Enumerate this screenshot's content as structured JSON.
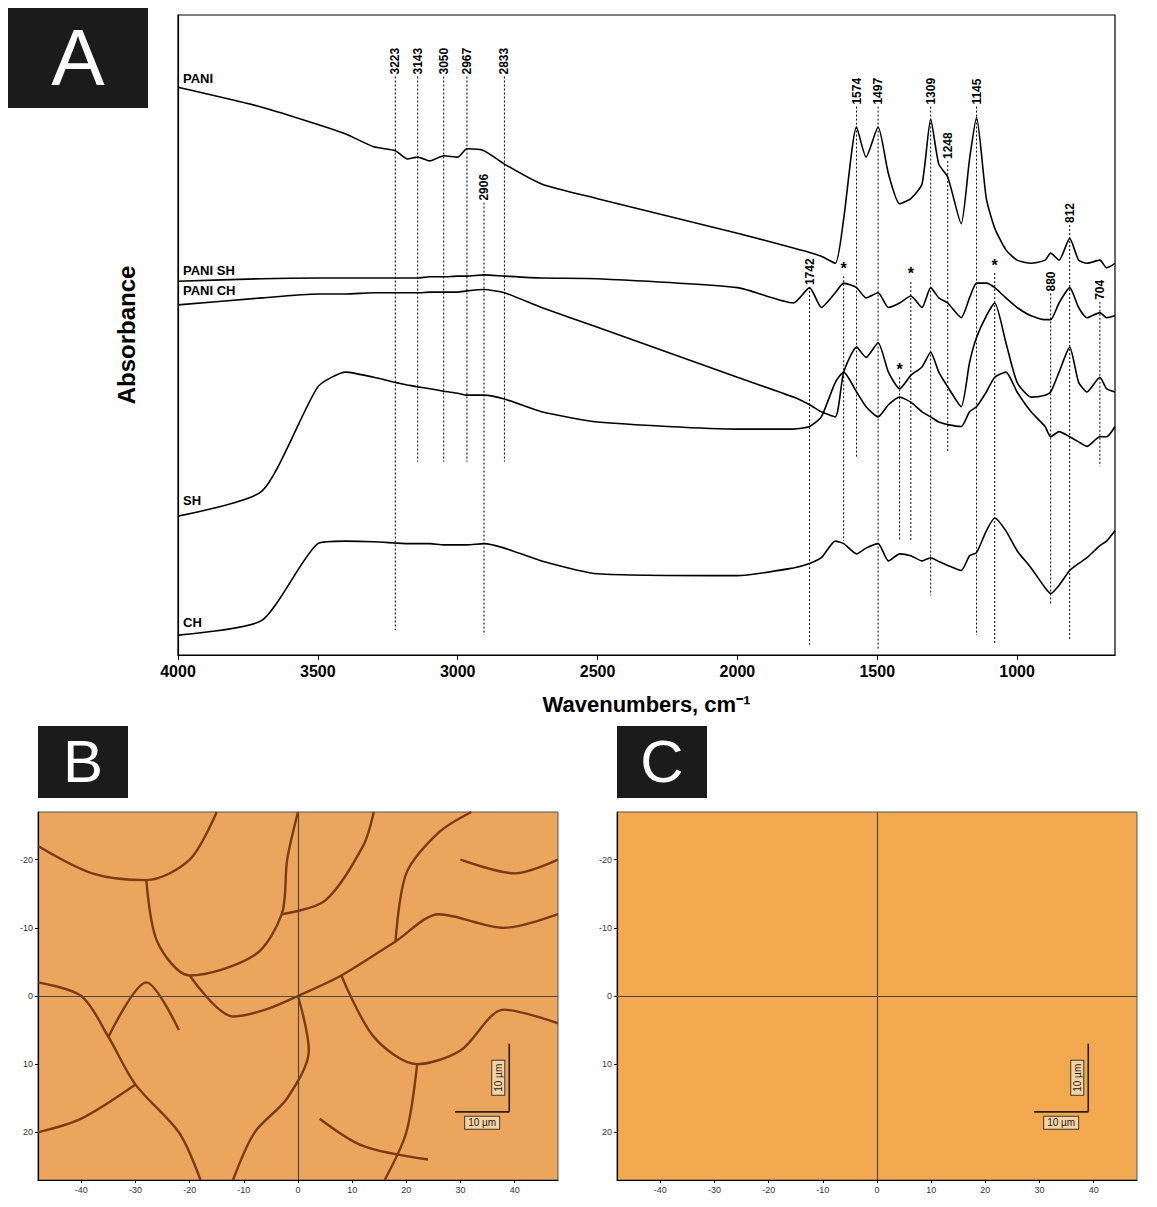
{
  "chart_data": [
    {
      "panel": "A",
      "type": "line",
      "x_label": "Wavenumbers, cm⁻¹",
      "y_label": "Absorbance",
      "xlim": [
        4000,
        650
      ],
      "xticks": [
        4000,
        3500,
        3000,
        2500,
        2000,
        1500,
        1000
      ],
      "ylim": [
        0,
        100
      ],
      "yticks": [],
      "tick_labels": "x",
      "grid": false,
      "x": [
        4000,
        3700,
        3500,
        3400,
        3300,
        3223,
        3180,
        3143,
        3100,
        3050,
        3000,
        2967,
        2906,
        2833,
        2700,
        2500,
        2000,
        1800,
        1742,
        1700,
        1650,
        1620,
        1574,
        1540,
        1497,
        1460,
        1420,
        1380,
        1340,
        1309,
        1280,
        1248,
        1200,
        1170,
        1145,
        1110,
        1080,
        1040,
        1000,
        950,
        900,
        880,
        850,
        812,
        780,
        750,
        704,
        680,
        650
      ],
      "series": [
        {
          "name": "PANI",
          "color": "#000000",
          "values": [
            88.7,
            85.6,
            82.9,
            81.4,
            79.4,
            78.8,
            77.5,
            77.8,
            77.2,
            78.0,
            77.8,
            79.1,
            78.8,
            76.7,
            73.6,
            71.3,
            65.9,
            63.6,
            62.9,
            62.3,
            61.2,
            68.2,
            82.5,
            77.8,
            82.5,
            75.2,
            70.5,
            71.3,
            73.6,
            83.7,
            76.7,
            74.7,
            67.4,
            77.5,
            84.0,
            71.3,
            66.7,
            63.3,
            61.7,
            61.2,
            61.7,
            62.8,
            61.7,
            65.1,
            61.7,
            61.2,
            61.7,
            60.5,
            61.2
          ]
        },
        {
          "name": "PANI SH",
          "color": "#000000",
          "values": [
            58.4,
            58.8,
            58.9,
            58.9,
            58.9,
            58.9,
            58.9,
            58.9,
            59.1,
            59.1,
            59.2,
            59.2,
            59.4,
            59.2,
            58.9,
            58.8,
            57.4,
            55.0,
            57.4,
            54.3,
            56.6,
            58.1,
            57.4,
            55.8,
            56.6,
            54.3,
            55.0,
            56.1,
            54.3,
            57.4,
            55.8,
            55.0,
            52.7,
            55.8,
            58.1,
            58.1,
            57.4,
            55.8,
            54.3,
            53.0,
            52.4,
            52.4,
            55.0,
            57.4,
            54.3,
            52.7,
            53.5,
            52.7,
            53.0
          ]
        },
        {
          "name": "PANI CH",
          "color": "#000000",
          "values": [
            54.7,
            55.8,
            56.4,
            56.4,
            56.6,
            56.6,
            56.6,
            56.6,
            56.7,
            56.7,
            56.7,
            56.9,
            57.1,
            56.6,
            54.3,
            51.2,
            43.4,
            40.3,
            39.1,
            38.0,
            37.2,
            44.2,
            48.1,
            46.5,
            48.8,
            44.2,
            41.6,
            43.7,
            45.0,
            47.3,
            44.2,
            41.9,
            38.8,
            45.7,
            49.6,
            53.0,
            55.0,
            48.8,
            42.6,
            40.3,
            40.6,
            41.1,
            44.2,
            48.1,
            42.6,
            41.1,
            43.4,
            41.6,
            41.1
          ]
        },
        {
          "name": "SH",
          "color": "#000000",
          "values": [
            21.7,
            25.6,
            41.9,
            44.2,
            43.4,
            42.6,
            42.2,
            41.9,
            41.6,
            41.2,
            40.9,
            40.6,
            40.6,
            40.0,
            38.0,
            36.4,
            35.3,
            35.3,
            35.7,
            37.2,
            42.6,
            44.2,
            41.1,
            38.8,
            37.2,
            39.1,
            40.3,
            39.5,
            38.0,
            37.2,
            36.4,
            36.0,
            35.7,
            38.0,
            38.8,
            41.1,
            43.4,
            44.2,
            41.1,
            38.0,
            35.7,
            34.1,
            34.9,
            34.1,
            33.3,
            32.6,
            34.1,
            34.1,
            35.7
          ]
        },
        {
          "name": "CH",
          "color": "#000000",
          "values": [
            3.1,
            5.4,
            17.4,
            17.8,
            17.7,
            17.5,
            17.4,
            17.4,
            17.4,
            17.2,
            17.2,
            17.2,
            17.4,
            16.7,
            14.7,
            12.7,
            12.4,
            13.6,
            14.3,
            15.2,
            17.8,
            17.4,
            15.8,
            16.7,
            17.4,
            14.7,
            15.8,
            15.5,
            14.7,
            15.2,
            14.6,
            14.0,
            13.2,
            15.5,
            16.0,
            19.4,
            21.4,
            19.4,
            16.3,
            13.6,
            10.5,
            9.6,
            10.9,
            13.2,
            14.3,
            15.2,
            17.1,
            17.8,
            19.4
          ]
        }
      ],
      "annotations": [
        {
          "text": "3223",
          "x": 3223,
          "y": 90.7,
          "y_end": 3.9
        },
        {
          "text": "3143",
          "x": 3143,
          "y": 90.7,
          "y_end": 30.2
        },
        {
          "text": "3050",
          "x": 3050,
          "y": 90.7,
          "y_end": 30.2
        },
        {
          "text": "2967",
          "x": 2967,
          "y": 90.7,
          "y_end": 30.2
        },
        {
          "text": "2833",
          "x": 2833,
          "y": 90.7,
          "y_end": 30.2
        },
        {
          "text": "2906",
          "x": 2906,
          "y": 71.0,
          "y_end": 3.1
        },
        {
          "text": "1742",
          "x": 1742,
          "y": 57.8,
          "y_end": 1.6
        },
        {
          "text": "1574",
          "x": 1574,
          "y": 86.0,
          "y_end": 31.0
        },
        {
          "text": "1497",
          "x": 1497,
          "y": 86.0,
          "y_end": 0.8
        },
        {
          "text": "1309",
          "x": 1309,
          "y": 86.0,
          "y_end": 9.3
        },
        {
          "text": "1248",
          "x": 1248,
          "y": 77.5,
          "y_end": 31.8
        },
        {
          "text": "1145",
          "x": 1145,
          "y": 86.0,
          "y_end": 3.1
        },
        {
          "text": "880",
          "x": 880,
          "y": 56.8,
          "y_end": 7.8
        },
        {
          "text": "812",
          "x": 812,
          "y": 67.5,
          "y_end": 2.3
        },
        {
          "text": "704",
          "x": 704,
          "y": 55.5,
          "y_end": 29.5
        },
        {
          "text": "*",
          "x": 1620,
          "y": 59.5,
          "y_end": 17.8
        },
        {
          "text": "*",
          "x": 1380,
          "y": 58.6,
          "y_end": 17.8
        },
        {
          "text": "*",
          "x": 1420,
          "y": 43.7,
          "y_end": 17.8
        },
        {
          "text": "*",
          "x": 1080,
          "y": 60.0,
          "y_end": 1.6
        }
      ]
    },
    {
      "panel": "B",
      "type": "image",
      "color": "#eca55c",
      "xlim": [
        -48,
        48
      ],
      "xticks": [
        -40,
        -30,
        -20,
        -10,
        0,
        10,
        20,
        30,
        40
      ],
      "ylim": [
        27,
        -27
      ],
      "yticks": [
        -20,
        -10,
        0,
        10,
        20
      ],
      "grid": false,
      "crosshair": {
        "x": 0,
        "y": 0
      },
      "scale_bar": {
        "label": "10 µm",
        "x": [
          29,
          39
        ],
        "y": [
          7,
          17
        ]
      },
      "cracks": [
        [
          [
            -48,
            -22
          ],
          [
            -38,
            -18
          ],
          [
            -28,
            -17
          ],
          [
            -20,
            -20
          ],
          [
            -15,
            -27
          ]
        ],
        [
          [
            -28,
            -17
          ],
          [
            -26,
            -8
          ],
          [
            -20,
            -3
          ],
          [
            -8,
            -6
          ],
          [
            -3,
            -12
          ],
          [
            -2,
            -20
          ],
          [
            0,
            -27
          ]
        ],
        [
          [
            -3,
            -12
          ],
          [
            5,
            -14
          ],
          [
            12,
            -22
          ],
          [
            14,
            -27
          ]
        ],
        [
          [
            -48,
            -2
          ],
          [
            -40,
            0
          ],
          [
            -35,
            6
          ],
          [
            -30,
            13
          ],
          [
            -22,
            20
          ],
          [
            -18,
            27
          ]
        ],
        [
          [
            -20,
            -3
          ],
          [
            -12,
            3
          ],
          [
            -6,
            2
          ],
          [
            0,
            0
          ],
          [
            8,
            -3
          ],
          [
            18,
            -8
          ],
          [
            26,
            -12
          ],
          [
            38,
            -10
          ],
          [
            48,
            -12
          ]
        ],
        [
          [
            0,
            0
          ],
          [
            2,
            8
          ],
          [
            -2,
            15
          ],
          [
            -8,
            20
          ],
          [
            -12,
            27
          ]
        ],
        [
          [
            18,
            -8
          ],
          [
            20,
            -18
          ],
          [
            26,
            -24
          ],
          [
            32,
            -27
          ]
        ],
        [
          [
            30,
            -20
          ],
          [
            40,
            -18
          ],
          [
            48,
            -20
          ]
        ],
        [
          [
            8,
            -3
          ],
          [
            14,
            6
          ],
          [
            22,
            10
          ],
          [
            30,
            8
          ],
          [
            38,
            2
          ],
          [
            48,
            4
          ]
        ],
        [
          [
            22,
            10
          ],
          [
            20,
            20
          ],
          [
            16,
            27
          ]
        ],
        [
          [
            -30,
            13
          ],
          [
            -40,
            18
          ],
          [
            -48,
            20
          ]
        ],
        [
          [
            -35,
            6
          ],
          [
            -28,
            -2
          ],
          [
            -22,
            5
          ]
        ],
        [
          [
            4,
            18
          ],
          [
            12,
            22
          ],
          [
            24,
            24
          ]
        ]
      ]
    },
    {
      "panel": "C",
      "type": "image",
      "color": "#f2a94f",
      "xlim": [
        -48,
        48
      ],
      "xticks": [
        -40,
        -30,
        -20,
        -10,
        0,
        10,
        20,
        30,
        40
      ],
      "ylim": [
        27,
        -27
      ],
      "yticks": [
        -20,
        -10,
        0,
        10,
        20
      ],
      "grid": false,
      "crosshair": {
        "x": 0,
        "y": 0
      },
      "scale_bar": {
        "label": "10 µm",
        "x": [
          29,
          39
        ],
        "y": [
          7,
          17
        ]
      },
      "cracks": []
    }
  ]
}
